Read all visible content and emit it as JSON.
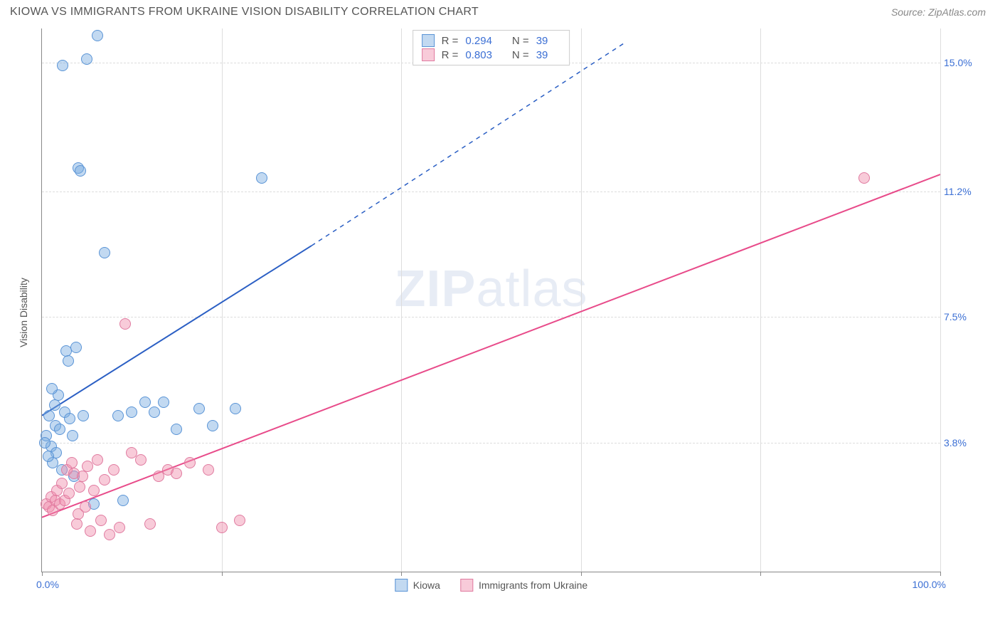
{
  "title": "KIOWA VS IMMIGRANTS FROM UKRAINE VISION DISABILITY CORRELATION CHART",
  "source": "Source: ZipAtlas.com",
  "watermark_a": "ZIP",
  "watermark_b": "atlas",
  "chart": {
    "type": "scatter",
    "y_axis_title": "Vision Disability",
    "xlim": [
      0,
      100
    ],
    "ylim": [
      0,
      16
    ],
    "x_ticks": [
      0,
      20,
      40,
      60,
      80,
      100
    ],
    "x_tick_labels": {
      "min": "0.0%",
      "max": "100.0%"
    },
    "y_gridlines": [
      3.8,
      7.5,
      11.2,
      15.0
    ],
    "y_tick_labels": [
      "3.8%",
      "7.5%",
      "11.2%",
      "15.0%"
    ],
    "background_color": "#ffffff",
    "grid_color": "#dddddd",
    "axis_color": "#888888",
    "label_color": "#3b6fd4",
    "title_color": "#555555",
    "title_fontsize": 16,
    "label_fontsize": 14,
    "point_radius": 8,
    "series": [
      {
        "name": "Kiowa",
        "fill_color": "rgba(120,170,225,0.45)",
        "stroke_color": "#5a94d6",
        "line_color": "#2b5fc4",
        "line_width": 2,
        "R": "0.294",
        "N": "39",
        "trend": {
          "x1": 0,
          "y1": 4.6,
          "x2_solid": 30,
          "y2_solid": 9.6,
          "x2_dash": 65,
          "y2_dash": 15.6
        },
        "points": [
          [
            0.5,
            4.0
          ],
          [
            0.8,
            4.6
          ],
          [
            1.0,
            3.7
          ],
          [
            1.2,
            3.2
          ],
          [
            1.4,
            4.9
          ],
          [
            1.5,
            4.3
          ],
          [
            1.6,
            3.5
          ],
          [
            1.8,
            5.2
          ],
          [
            2.0,
            4.2
          ],
          [
            2.2,
            3.0
          ],
          [
            2.5,
            4.7
          ],
          [
            2.7,
            6.5
          ],
          [
            2.9,
            6.2
          ],
          [
            3.1,
            4.5
          ],
          [
            3.4,
            4.0
          ],
          [
            3.6,
            2.8
          ],
          [
            3.8,
            6.6
          ],
          [
            4.0,
            11.9
          ],
          [
            4.3,
            11.8
          ],
          [
            4.6,
            4.6
          ],
          [
            5.0,
            15.1
          ],
          [
            5.8,
            2.0
          ],
          [
            6.2,
            15.8
          ],
          [
            7.0,
            9.4
          ],
          [
            8.5,
            4.6
          ],
          [
            9.0,
            2.1
          ],
          [
            10.0,
            4.7
          ],
          [
            11.5,
            5.0
          ],
          [
            12.5,
            4.7
          ],
          [
            13.5,
            5.0
          ],
          [
            15.0,
            4.2
          ],
          [
            17.5,
            4.8
          ],
          [
            19.0,
            4.3
          ],
          [
            21.5,
            4.8
          ],
          [
            24.5,
            11.6
          ],
          [
            0.7,
            3.4
          ],
          [
            1.1,
            5.4
          ],
          [
            0.3,
            3.8
          ],
          [
            2.3,
            14.9
          ]
        ]
      },
      {
        "name": "Immigrants from Ukraine",
        "fill_color": "rgba(240,140,170,0.45)",
        "stroke_color": "#e07ba0",
        "line_color": "#e84b8a",
        "line_width": 2,
        "R": "0.803",
        "N": "39",
        "trend": {
          "x1": 0,
          "y1": 1.6,
          "x2_solid": 100,
          "y2_solid": 11.7,
          "x2_dash": 100,
          "y2_dash": 11.7
        },
        "points": [
          [
            0.5,
            2.0
          ],
          [
            0.8,
            1.9
          ],
          [
            1.0,
            2.2
          ],
          [
            1.2,
            1.8
          ],
          [
            1.5,
            2.1
          ],
          [
            1.7,
            2.4
          ],
          [
            2.0,
            2.0
          ],
          [
            2.2,
            2.6
          ],
          [
            2.5,
            2.1
          ],
          [
            2.8,
            3.0
          ],
          [
            3.0,
            2.3
          ],
          [
            3.3,
            3.2
          ],
          [
            3.6,
            2.9
          ],
          [
            3.9,
            1.4
          ],
          [
            4.2,
            2.5
          ],
          [
            4.5,
            2.8
          ],
          [
            4.8,
            1.9
          ],
          [
            5.1,
            3.1
          ],
          [
            5.4,
            1.2
          ],
          [
            5.8,
            2.4
          ],
          [
            6.2,
            3.3
          ],
          [
            6.6,
            1.5
          ],
          [
            7.0,
            2.7
          ],
          [
            7.5,
            1.1
          ],
          [
            8.0,
            3.0
          ],
          [
            8.6,
            1.3
          ],
          [
            9.3,
            7.3
          ],
          [
            10.0,
            3.5
          ],
          [
            11.0,
            3.3
          ],
          [
            12.0,
            1.4
          ],
          [
            13.0,
            2.8
          ],
          [
            14.0,
            3.0
          ],
          [
            15.0,
            2.9
          ],
          [
            16.5,
            3.2
          ],
          [
            18.5,
            3.0
          ],
          [
            20.0,
            1.3
          ],
          [
            22.0,
            1.5
          ],
          [
            91.5,
            11.6
          ],
          [
            4.0,
            1.7
          ]
        ]
      }
    ]
  },
  "legend_top_label_R": "R =",
  "legend_top_label_N": "N =",
  "legend_bottom": [
    "Kiowa",
    "Immigrants from Ukraine"
  ]
}
